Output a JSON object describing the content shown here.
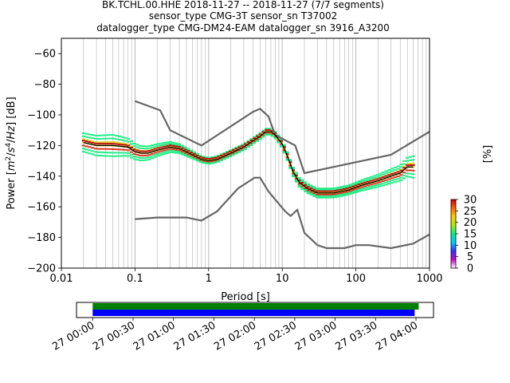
{
  "chart_data": [
    {
      "type": "line",
      "title": [
        "BK.TCHL.00.HHE   2018-11-27 -- 2018-11-27  (7/7 segments)",
        "sensor_type CMG-3T sensor_sn T37002",
        "datalogger_type CMG-DM24-EAM datalogger_sn 3916_A3200"
      ],
      "xlabel": "Period [s]",
      "ylabel_parts": [
        "Power [",
        "m",
        "2",
        "/",
        "s",
        "4",
        "/",
        "Hz",
        "] [dB]"
      ],
      "xscale": "log",
      "xlim": [
        0.01,
        1000
      ],
      "ylim": [
        -200,
        -50
      ],
      "xtick_values": [
        0.01,
        0.1,
        1,
        10,
        100,
        1000
      ],
      "xtick_labels": [
        "0.01",
        "0.1",
        "1",
        "10",
        "100",
        "1000"
      ],
      "ytick_values": [
        -200,
        -180,
        -160,
        -140,
        -120,
        -100,
        -80,
        -60
      ],
      "ytick_labels": [
        "−200",
        "−180",
        "−160",
        "−140",
        "−120",
        "−100",
        "−80",
        "−60"
      ],
      "grid": "vertical-log",
      "noise_models": [
        {
          "color": "#666666",
          "points": [
            [
              0.1,
              -91
            ],
            [
              0.22,
              -97
            ],
            [
              0.3,
              -110
            ],
            [
              0.8,
              -120
            ],
            [
              4,
              -98
            ],
            [
              5,
              -96
            ],
            [
              6.5,
              -101
            ],
            [
              8,
              -113
            ],
            [
              15,
              -120
            ],
            [
              20,
              -138
            ],
            [
              300,
              -126
            ],
            [
              1000,
              -111
            ]
          ]
        },
        {
          "color": "#666666",
          "points": [
            [
              0.1,
              -168
            ],
            [
              0.2,
              -167
            ],
            [
              0.5,
              -167
            ],
            [
              0.8,
              -169
            ],
            [
              1.3,
              -163
            ],
            [
              2.5,
              -148
            ],
            [
              4.2,
              -141
            ],
            [
              5,
              -141
            ],
            [
              6.5,
              -150
            ],
            [
              11,
              -163
            ],
            [
              13,
              -166
            ],
            [
              16,
              -162
            ],
            [
              20,
              -177
            ],
            [
              30,
              -185
            ],
            [
              40,
              -187
            ],
            [
              70,
              -187
            ],
            [
              100,
              -185
            ],
            [
              150,
              -185
            ],
            [
              300,
              -187
            ],
            [
              600,
              -184
            ],
            [
              1000,
              -178
            ]
          ]
        }
      ],
      "median_color": "#000000",
      "median": [
        [
          0.02,
          -118
        ],
        [
          0.03,
          -120
        ],
        [
          0.05,
          -120
        ],
        [
          0.08,
          -121
        ],
        [
          0.1,
          -124
        ],
        [
          0.12,
          -125
        ],
        [
          0.15,
          -125
        ],
        [
          0.2,
          -123
        ],
        [
          0.3,
          -121
        ],
        [
          0.4,
          -122
        ],
        [
          0.6,
          -126
        ],
        [
          0.8,
          -129
        ],
        [
          1,
          -130
        ],
        [
          1.3,
          -129
        ],
        [
          2,
          -125
        ],
        [
          3,
          -121
        ],
        [
          4,
          -117
        ],
        [
          5,
          -114
        ],
        [
          6,
          -111
        ],
        [
          7,
          -111
        ],
        [
          8,
          -113
        ],
        [
          10,
          -119
        ],
        [
          12,
          -128
        ],
        [
          14,
          -137
        ],
        [
          17,
          -144
        ],
        [
          22,
          -148
        ],
        [
          30,
          -151
        ],
        [
          40,
          -151
        ],
        [
          50,
          -151
        ],
        [
          80,
          -149
        ],
        [
          120,
          -146
        ],
        [
          200,
          -143
        ],
        [
          300,
          -140
        ],
        [
          400,
          -138
        ],
        [
          500,
          -134
        ],
        [
          600,
          -134
        ]
      ],
      "density_colors": [
        "#22ee88",
        "#22dd99",
        "#aadd44",
        "#e0d030",
        "#ee8822",
        "#dd3322",
        "#bb1111"
      ],
      "density_spread": [
        [
          0.02,
          6
        ],
        [
          0.05,
          7
        ],
        [
          0.1,
          5
        ],
        [
          0.2,
          4
        ],
        [
          0.4,
          3
        ],
        [
          0.8,
          2
        ],
        [
          3,
          2
        ],
        [
          7,
          2
        ],
        [
          15,
          3
        ],
        [
          30,
          3
        ],
        [
          80,
          3
        ],
        [
          200,
          4
        ],
        [
          400,
          5
        ],
        [
          600,
          7
        ]
      ],
      "colorbar": {
        "label": "[%]",
        "min": 0,
        "max": 30,
        "ticks": [
          0,
          5,
          10,
          15,
          20,
          25,
          30
        ],
        "tick_labels": [
          "0",
          "5",
          "10",
          "15",
          "20",
          "25",
          "30"
        ],
        "colors": [
          "#ffffff",
          "#cc00cc",
          "#3333ff",
          "#00ccff",
          "#00ee88",
          "#aaee00",
          "#ffcc00",
          "#ff6600",
          "#cc0000"
        ]
      }
    },
    {
      "type": "timeline",
      "tick_labels": [
        "27 00:00",
        "27 00:30",
        "27 01:00",
        "27 01:30",
        "27 02:00",
        "27 02:30",
        "27 03:00",
        "27 03:30",
        "27 04:00"
      ],
      "tick_minutes": [
        0,
        30,
        60,
        90,
        120,
        150,
        180,
        210,
        240
      ],
      "xlim_minutes": [
        -12,
        253
      ],
      "bars": [
        {
          "color": "#008000",
          "start_minutes": 0,
          "end_minutes": 242
        },
        {
          "color": "#0000ff",
          "start_minutes": 0,
          "end_minutes": 239
        }
      ]
    }
  ]
}
